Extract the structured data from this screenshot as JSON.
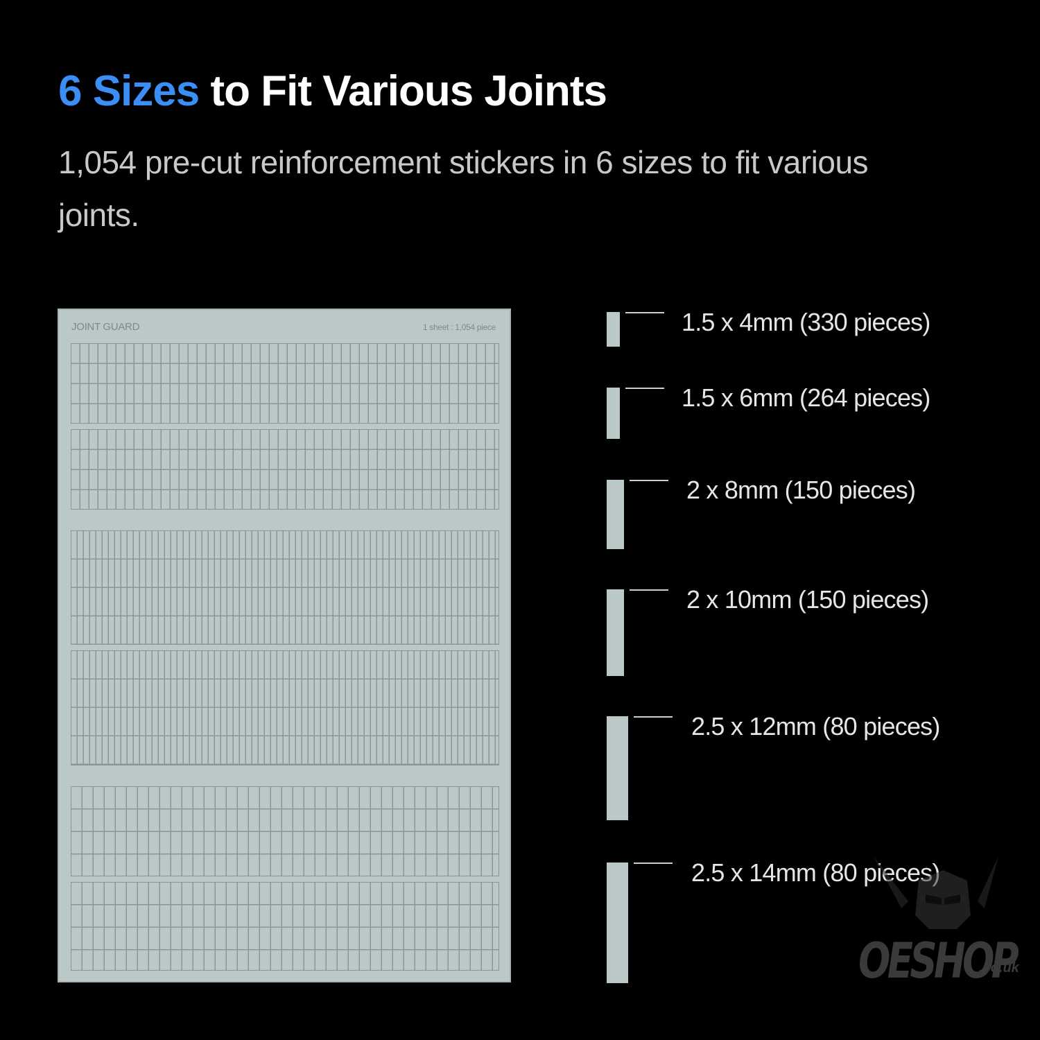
{
  "header": {
    "title_highlight": "6 Sizes",
    "title_rest": " to Fit Various Joints",
    "subtitle": "1,054 pre-cut reinforcement stickers in 6 sizes to fit various joints."
  },
  "sheet": {
    "brand": "JOINT GUARD",
    "count": "1 sheet : 1,054 piece"
  },
  "sizes": [
    {
      "label": "1.5 x 4mm (330 pieces)"
    },
    {
      "label": "1.5 x 6mm (264 pieces)"
    },
    {
      "label": "2 x 8mm (150 pieces)"
    },
    {
      "label": "2 x 10mm (150 pieces)"
    },
    {
      "label": "2.5 x 12mm (80 pieces)"
    },
    {
      "label": "2.5 x 14mm (80 pieces)"
    }
  ],
  "watermark": {
    "text": "OESHOP",
    "suffix": ".co.uk"
  },
  "colors": {
    "accent": "#3b8ef5",
    "background": "#000000",
    "sheet": "#bac8c8",
    "grid_line": "#8a9696"
  }
}
